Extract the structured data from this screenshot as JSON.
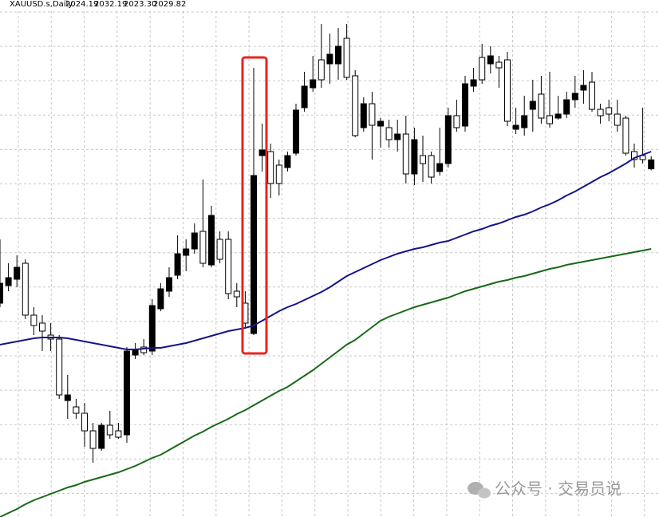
{
  "chart_data": {
    "type": "candlestick",
    "symbol": "XAUUSD.s,Daily",
    "last_value_labels": [
      "2024.19",
      "2032.19",
      "2023.30",
      "2029.82"
    ],
    "up_color": "#000000",
    "down_color": "#ffffff",
    "ylim": [
      1806,
      2130
    ],
    "grid": true,
    "open": [
      1940,
      1951,
      1955,
      1965,
      1932.5,
      1927.5,
      1920,
      1917.5,
      1879,
      1875,
      1871,
      1860,
      1849,
      1863.5,
      1860,
      1857.5,
      1907.5,
      1912.5,
      1910,
      1936.5,
      1947.5,
      1957.5,
      1970,
      1974,
      1985,
      1964,
      1980,
      1980,
      1947.5,
      1940,
      1921,
      2032.5,
      2035,
      2026.5,
      2025,
      2034,
      2062.5,
      2075,
      2092.5,
      2090,
      2090,
      2106,
      2082.5,
      2050,
      2065,
      2051,
      2050,
      2042.5,
      2046,
      2021,
      2032.5,
      2032.5,
      2022.5,
      2027.5,
      2057.5,
      2051,
      2076,
      2094,
      2090,
      2091,
      2092.5,
      2049,
      2050,
      2061.5,
      2071,
      2057.5,
      2056,
      2058.5,
      2067.5,
      2073.5,
      2078.5,
      2061.5,
      2062.5,
      2058.5,
      2056,
      2035,
      2032.5,
      2024.19
    ],
    "high": [
      1980,
      1965,
      1970,
      1967.5,
      1937.5,
      1932.5,
      1927.5,
      1920,
      1895,
      1880,
      1877.5,
      1865,
      1865,
      1872.5,
      1865,
      1912.5,
      1915,
      1917.5,
      1942.5,
      1952.5,
      1962.5,
      1982.5,
      1980,
      1990,
      2017.5,
      2001,
      1985,
      1985,
      1952.5,
      1947.5,
      2087.5,
      2052.5,
      2040,
      2030,
      2035,
      2065,
      2085,
      2095,
      2115,
      2109,
      2112.5,
      2115,
      2086,
      2069,
      2072.5,
      2056,
      2055,
      2055,
      2057.5,
      2050,
      2045,
      2035,
      2050,
      2062.5,
      2067.5,
      2082.5,
      2087.5,
      2102.5,
      2101,
      2095,
      2097.5,
      2062.5,
      2070,
      2080,
      2082.5,
      2085,
      2070,
      2072.5,
      2082.5,
      2086,
      2085,
      2065,
      2067.5,
      2067.5,
      2057.5,
      2040,
      2062.5,
      2032.19
    ],
    "low": [
      1937.5,
      1947.5,
      1950,
      1930,
      1920,
      1910,
      1910,
      1880,
      1867.5,
      1867.5,
      1850,
      1840,
      1847.5,
      1855,
      1855,
      1852.5,
      1905,
      1907.5,
      1907.5,
      1935,
      1944,
      1955,
      1960,
      1971,
      1962.5,
      1962.5,
      1965,
      1942.5,
      1937.5,
      1925,
      1920,
      2022.5,
      2006,
      2007.5,
      2022.5,
      2032.5,
      2060,
      2072.5,
      2075,
      2077.5,
      2080,
      2080,
      2044,
      2047.5,
      2030,
      2037.5,
      2037.5,
      2035,
      2015,
      2014,
      2016,
      2015,
      2020,
      2025,
      2047.5,
      2047.5,
      2072.5,
      2077.5,
      2084,
      2075,
      2051,
      2046,
      2045,
      2047.5,
      2052.5,
      2050,
      2055,
      2056,
      2062.5,
      2065,
      2060,
      2052.5,
      2054,
      2047.5,
      2032.5,
      2025,
      2027.5,
      2023.3
    ],
    "close": [
      1952.5,
      1956,
      1962.5,
      1932.5,
      1926,
      1922.5,
      1917.5,
      1882.5,
      1882.5,
      1871,
      1860,
      1849,
      1863.5,
      1857.5,
      1856,
      1910,
      1911,
      1909,
      1938.5,
      1949,
      1956,
      1971,
      1974,
      1984,
      1965,
      1995,
      1967.5,
      1946,
      1944,
      1927.5,
      2020,
      2036,
      2015,
      2015,
      2032.5,
      2061,
      2076,
      2080,
      2080,
      2096,
      2101,
      2081.5,
      2045,
      2065,
      2051.5,
      2054,
      2042.5,
      2046,
      2021,
      2042.5,
      2027.5,
      2019,
      2027.5,
      2057.5,
      2050,
      2077.5,
      2080,
      2080,
      2095,
      2087.5,
      2054,
      2051.5,
      2057.5,
      2066.5,
      2056,
      2052.5,
      2058.5,
      2067.5,
      2071.5,
      2076.5,
      2061.5,
      2057.5,
      2058.5,
      2051.5,
      2034,
      2030,
      2030,
      2029.82
    ],
    "overlays": [
      {
        "color": "#14148c",
        "values": [
          1914,
          1915,
          1916,
          1917,
          1918,
          1918.5,
          1918.5,
          1918.5,
          1918,
          1917,
          1916,
          1915,
          1914,
          1913,
          1912,
          1911,
          1911,
          1911.5,
          1912,
          1912,
          1913,
          1914,
          1915,
          1916.5,
          1918,
          1919.5,
          1921,
          1922.5,
          1923.5,
          1924.5,
          1926,
          1929,
          1932,
          1935,
          1937.5,
          1939.5,
          1942,
          1944.5,
          1947,
          1950,
          1953.5,
          1957,
          1959.5,
          1962,
          1964.5,
          1967,
          1969,
          1971,
          1972.5,
          1974,
          1975,
          1976.5,
          1978,
          1979,
          1981,
          1983,
          1985,
          1986.5,
          1988.5,
          1990,
          1992,
          1994,
          1995.5,
          1997.5,
          2000,
          2002,
          2004.5,
          2007.5,
          2010,
          2013,
          2016,
          2019,
          2021.5,
          2024.5,
          2027.5,
          2031,
          2033,
          2035
        ]
      },
      {
        "color": "#166a16",
        "values": [
          1806,
          1808.5,
          1811,
          1814,
          1816.5,
          1818.5,
          1820.5,
          1822.5,
          1824.5,
          1826,
          1828,
          1829.5,
          1831,
          1832.5,
          1834,
          1836,
          1838,
          1840.5,
          1843,
          1845,
          1848,
          1851,
          1854,
          1857,
          1859.5,
          1862.5,
          1865,
          1867.5,
          1870.5,
          1873,
          1876,
          1879,
          1882,
          1885,
          1887.5,
          1891,
          1894.5,
          1898,
          1902,
          1906,
          1910,
          1914,
          1917,
          1921,
          1925,
          1929,
          1931.5,
          1933.5,
          1935.5,
          1937.5,
          1939,
          1940.5,
          1942,
          1943.5,
          1945.5,
          1947.5,
          1949,
          1950.5,
          1952,
          1953.5,
          1954.5,
          1956,
          1957,
          1958.5,
          1960,
          1961.5,
          1962.5,
          1964,
          1965,
          1966,
          1967,
          1968,
          1969,
          1970,
          1971,
          1972,
          1973,
          1974
        ]
      }
    ],
    "watermark": "公众号 · 交易员说"
  }
}
